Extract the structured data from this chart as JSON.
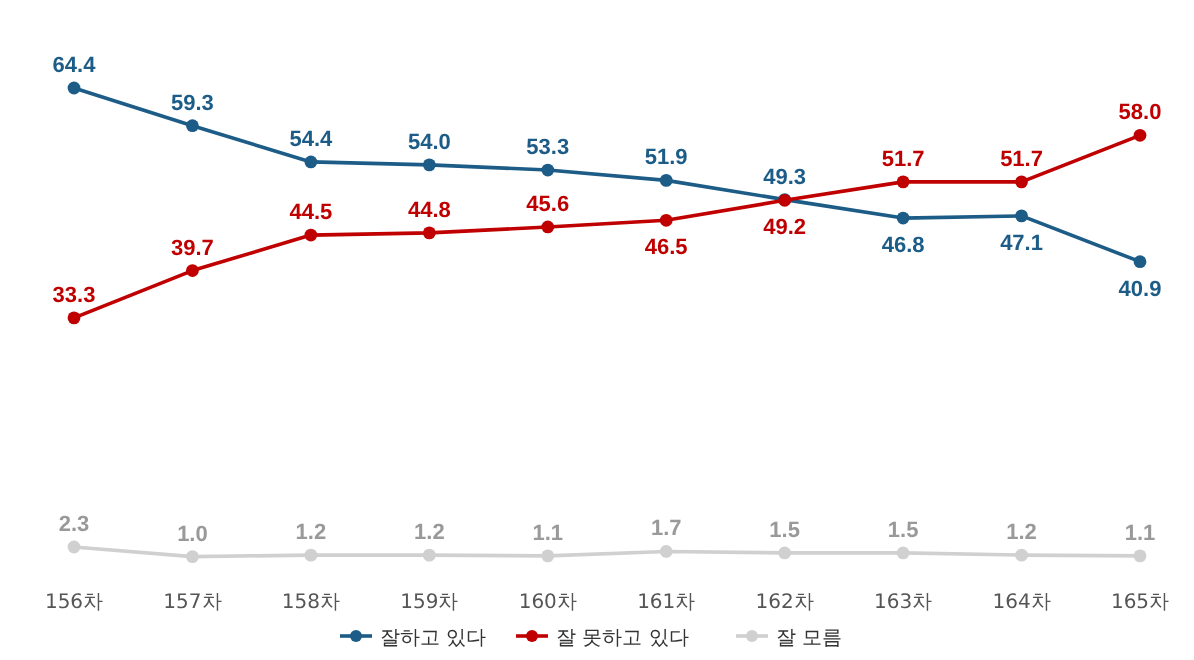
{
  "chart_data": {
    "type": "line",
    "categories": [
      "156차",
      "157차",
      "158차",
      "159차",
      "160차",
      "161차",
      "162차",
      "163차",
      "164차",
      "165차"
    ],
    "series": [
      {
        "name": "잘하고 있다",
        "color": "#1c5c87",
        "values": [
          64.4,
          59.3,
          54.4,
          54.0,
          53.3,
          51.9,
          49.3,
          46.8,
          47.1,
          40.9
        ],
        "value_labels": [
          "64.4",
          "59.3",
          "54.4",
          "54.0",
          "53.3",
          "51.9",
          "49.3",
          "46.8",
          "47.1",
          "40.9"
        ]
      },
      {
        "name": "잘 못하고 있다",
        "color": "#c00000",
        "values": [
          33.3,
          39.7,
          44.5,
          44.8,
          45.6,
          46.5,
          49.2,
          51.7,
          51.7,
          58.0
        ],
        "value_labels": [
          "33.3",
          "39.7",
          "44.5",
          "44.8",
          "45.6",
          "46.5",
          "49.2",
          "51.7",
          "51.7",
          "58.0"
        ]
      },
      {
        "name": "잘 모름",
        "color": "#d0d0d0",
        "values": [
          2.3,
          1.0,
          1.2,
          1.2,
          1.1,
          1.7,
          1.5,
          1.5,
          1.2,
          1.1
        ],
        "value_labels": [
          "2.3",
          "1.0",
          "1.2",
          "1.2",
          "1.1",
          "1.7",
          "1.5",
          "1.5",
          "1.2",
          "1.1"
        ]
      }
    ],
    "legend": "bottom",
    "marker": "circle",
    "line_style": "solid"
  }
}
